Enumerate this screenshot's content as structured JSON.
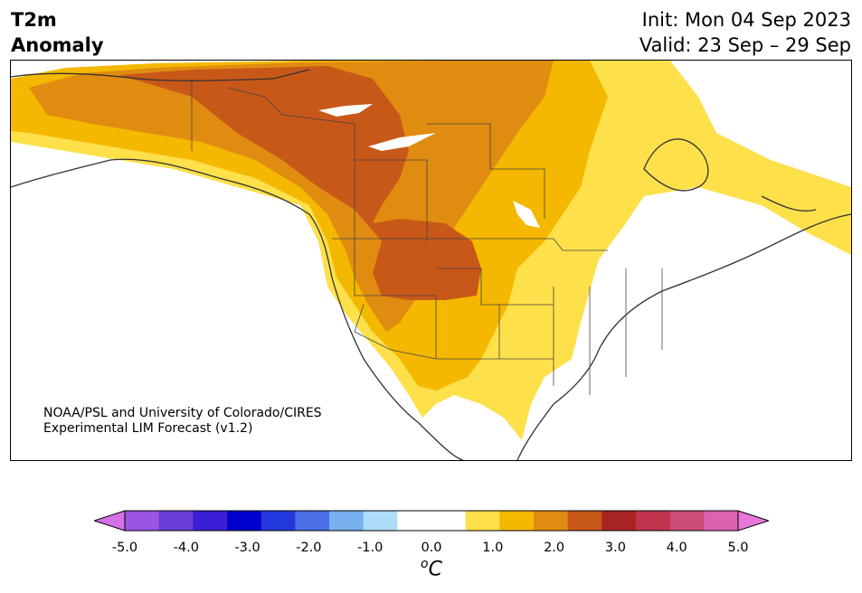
{
  "header": {
    "title_line1": "T2m",
    "title_line2": "Anomaly",
    "init": "Init: Mon 04 Sep 2023",
    "valid": "Valid: 23 Sep – 29 Sep"
  },
  "credit": {
    "line1": "NOAA/PSL and University of Colorado/CIRES",
    "line2": "Experimental LIM Forecast (v1.2)"
  },
  "colorbar": {
    "colors": [
      "#d470e8",
      "#9a55e3",
      "#6a3ddb",
      "#3a1fd6",
      "#0000cc",
      "#2237dc",
      "#4a6fe6",
      "#78b0ef",
      "#acdcf7",
      "#ffffff",
      "#ffffff",
      "#fde04a",
      "#f4b800",
      "#e08c10",
      "#c85818",
      "#a82424",
      "#c03450",
      "#cc4c78",
      "#dc62b0",
      "#e878d8"
    ],
    "ticks": [
      "-5.0",
      "-4.0",
      "-3.0",
      "-2.0",
      "-1.0",
      "0.0",
      "1.0",
      "2.0",
      "3.0",
      "4.0",
      "5.0"
    ],
    "units_base": "C",
    "units_sup": "o"
  },
  "map": {
    "anomaly_levels": [
      "0.5–1.0 °C light yellow",
      "1.0–1.5 °C yellow",
      "1.5–2.0 °C orange",
      "2.0–2.5 °C dark orange"
    ],
    "colors": {
      "water": "#ffffff",
      "land_neutral": "#ffffff",
      "coast": "#333333"
    }
  }
}
